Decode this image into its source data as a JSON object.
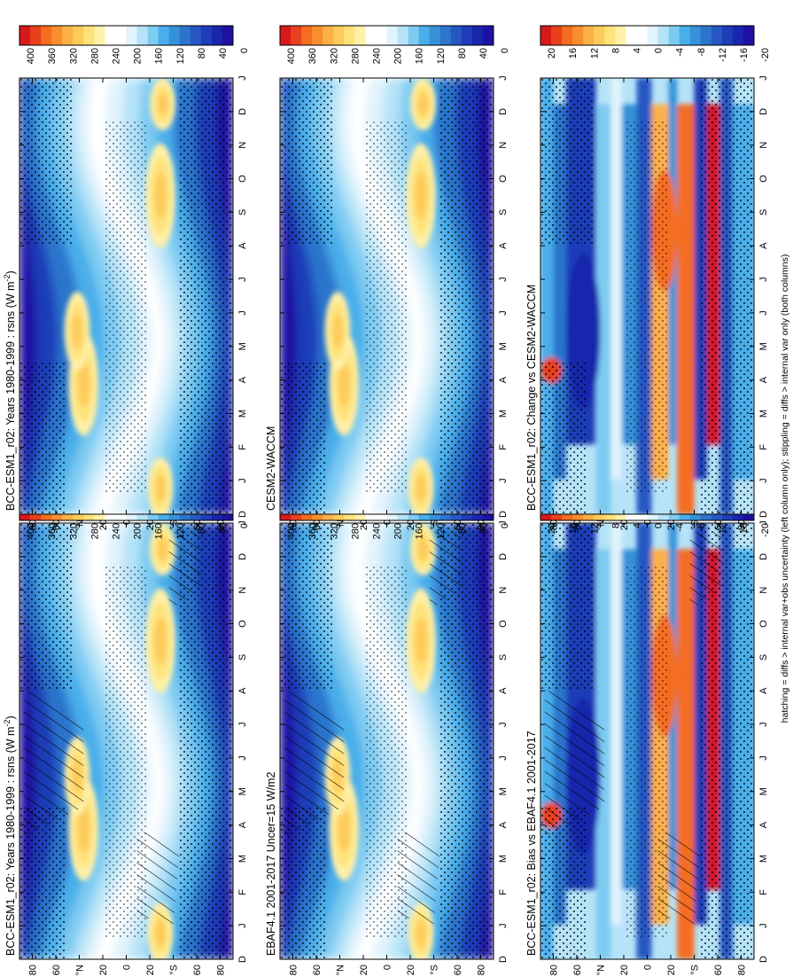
{
  "chart_data": [
    {
      "type": "heatmap",
      "title": "BCC-ESM1_r02: Years 1980-1999 : rsns (W m^-2)",
      "title_main": "BCC-ESM1_r02: Years 1980-1999 : rsns (W m",
      "title_sup": "-2",
      "title_end": ")",
      "kind": "abs",
      "hatch": true
    },
    {
      "type": "heatmap",
      "title": "BCC-ESM1_r02: Years 1980-1999 : rsns (W m^-2)",
      "title_main": "BCC-ESM1_r02: Years 1980-1999 : rsns (W m",
      "title_sup": "-2",
      "title_end": ")",
      "kind": "abs",
      "hatch": false
    },
    {
      "type": "heatmap",
      "title": "EBAF4.1 2001-2017 Uncer=15 W/m2",
      "title_main": "EBAF4.1 2001-2017 Uncer=15 W/m2",
      "title_sup": "",
      "title_end": "",
      "kind": "abs",
      "hatch": true
    },
    {
      "type": "heatmap",
      "title": "CESM2-WACCM",
      "title_main": "CESM2-WACCM",
      "title_sup": "",
      "title_end": "",
      "kind": "abs",
      "hatch": false
    },
    {
      "type": "heatmap",
      "title": "BCC-ESM1_r02: Bias vs EBAF4.1 2001-2017",
      "title_main": "BCC-ESM1_r02: Bias vs EBAF4.1 2001-2017",
      "title_sup": "",
      "title_end": "",
      "kind": "diff",
      "hatch": true
    },
    {
      "type": "heatmap",
      "title": "BCC-ESM1_r02: Change vs CESM2-WACCM",
      "title_main": "BCC-ESM1_r02: Change vs CESM2-WACCM",
      "title_sup": "",
      "title_end": "",
      "kind": "diff",
      "hatch": false
    }
  ],
  "month_labels": [
    "D",
    "J",
    "F",
    "M",
    "A",
    "M",
    "J",
    "J",
    "A",
    "S",
    "O",
    "N",
    "D",
    "J"
  ],
  "latitude_labels": [
    "80",
    "60",
    "°N",
    "20",
    "0",
    "20",
    "°S",
    "60",
    "80"
  ],
  "colorbars": {
    "absolute": {
      "labels": [
        "400",
        "360",
        "320",
        "280",
        "240",
        "200",
        "160",
        "120",
        "80",
        "40",
        "0"
      ],
      "colors": [
        "#d7191c",
        "#e8401c",
        "#f46d20",
        "#f98e2e",
        "#fcb04a",
        "#fdcb5a",
        "#fee27a",
        "#fff1a8",
        "#ffffff",
        "#ffffff",
        "#e1f3fc",
        "#b6e3f8",
        "#7ecbf2",
        "#49aeea",
        "#3592d9",
        "#2c74cc",
        "#2657c2",
        "#1f3db8",
        "#1826ad",
        "#1f10a3"
      ]
    },
    "difference": {
      "labels": [
        "20",
        "16",
        "12",
        "8",
        "4",
        "0",
        "-4",
        "-8",
        "-12",
        "-16",
        "-20"
      ],
      "colors": [
        "#d7191c",
        "#e8401c",
        "#f46d20",
        "#f98e2e",
        "#fcb04a",
        "#fdcb5a",
        "#fee27a",
        "#fff1a8",
        "#ffffff",
        "#ffffff",
        "#e1f3fc",
        "#b6e3f8",
        "#7ecbf2",
        "#49aeea",
        "#3592d9",
        "#2c74cc",
        "#2657c2",
        "#1f3db8",
        "#1826ad",
        "#1f10a3"
      ]
    }
  },
  "footnote": "hatching = diffs > internal var+obs uncertainty (left column only); stippling = diffs > internal var only (both columns)"
}
